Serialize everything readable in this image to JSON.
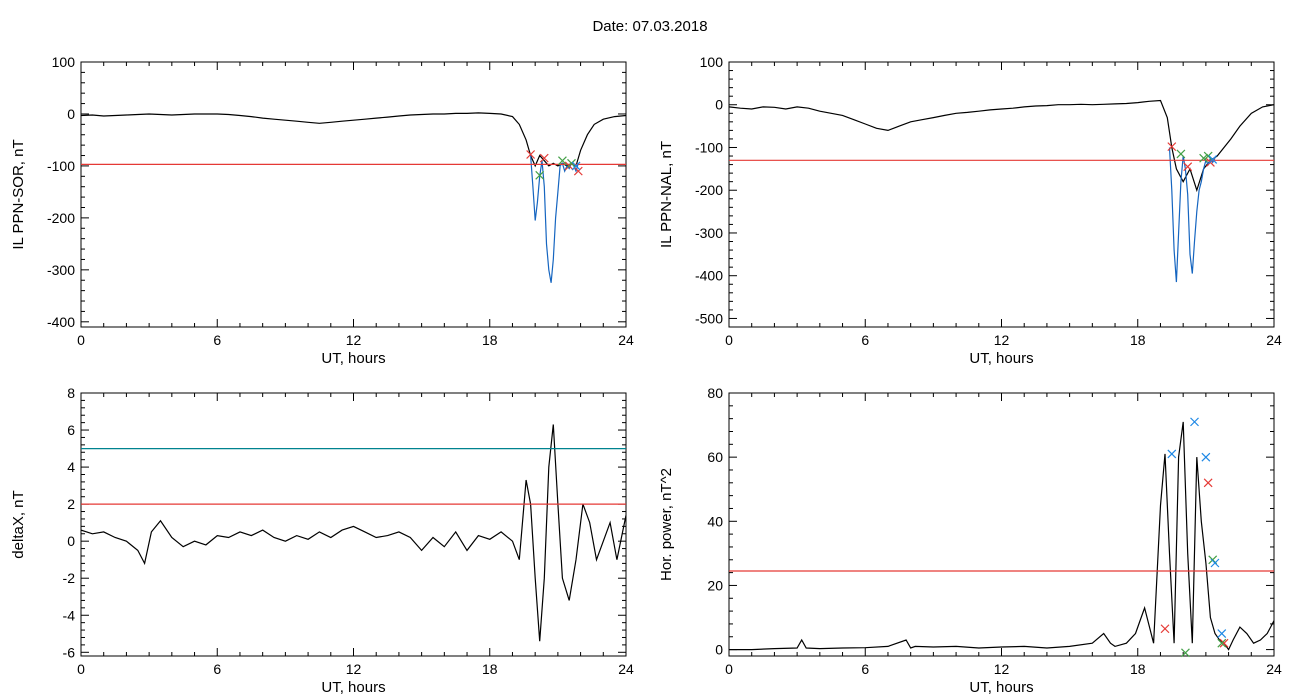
{
  "figure": {
    "title": "Date:  07.03.2018"
  },
  "chart_data": [
    {
      "type": "line",
      "xlabel": "UT, hours",
      "ylabel": "IL PPN-SOR, nT",
      "xlim": [
        0,
        24
      ],
      "ylim": [
        -410,
        100
      ],
      "xticks": [
        0,
        6,
        12,
        18,
        24
      ],
      "yticks": [
        100,
        0,
        -100,
        -200,
        -300,
        -400
      ],
      "grid": false,
      "series": [
        {
          "color": "#000000",
          "x": [
            0,
            0.5,
            1,
            1.5,
            2,
            2.5,
            3,
            3.5,
            4,
            4.5,
            5,
            5.5,
            6,
            6.5,
            7,
            7.5,
            8,
            8.5,
            9,
            9.5,
            10,
            10.5,
            11,
            11.5,
            12,
            12.5,
            13,
            13.5,
            14,
            14.5,
            15,
            15.5,
            16,
            16.5,
            17,
            17.5,
            18,
            18.5,
            19,
            19.3,
            19.6,
            19.8,
            20,
            20.2,
            20.4,
            20.6,
            20.8,
            21,
            21.2,
            21.4,
            21.6,
            21.8,
            22,
            22.3,
            22.6,
            23,
            23.5,
            24
          ],
          "y": [
            -3,
            -2,
            -4,
            -3,
            -2,
            -1,
            0,
            -1,
            -2,
            -1,
            0,
            0,
            0,
            -1,
            -3,
            -5,
            -8,
            -10,
            -12,
            -14,
            -16,
            -18,
            -16,
            -14,
            -12,
            -10,
            -8,
            -6,
            -4,
            -2,
            -1,
            0,
            0,
            1,
            1,
            2,
            1,
            0,
            -5,
            -20,
            -50,
            -80,
            -100,
            -80,
            -90,
            -100,
            -95,
            -100,
            -95,
            -100,
            -95,
            -100,
            -70,
            -40,
            -20,
            -10,
            -5,
            -3
          ]
        },
        {
          "color": "#1565c0",
          "x": [
            19.8,
            19.9,
            20.0,
            20.1,
            20.2,
            20.3,
            20.4,
            20.5,
            20.6,
            20.7,
            20.8,
            20.9,
            21.0,
            21.1,
            21.2,
            21.3,
            21.4,
            21.5,
            21.6,
            21.7,
            21.8,
            21.9
          ],
          "y": [
            -80,
            -140,
            -205,
            -170,
            -120,
            -90,
            -140,
            -250,
            -300,
            -325,
            -280,
            -200,
            -150,
            -100,
            -95,
            -110,
            -100,
            -105,
            -95,
            -100,
            -110,
            -95
          ]
        },
        {
          "color": "#e53935",
          "x": [
            0,
            24
          ],
          "y": [
            -97,
            -97
          ]
        }
      ],
      "markers": [
        {
          "color": "#e53935",
          "symbol": "x",
          "x": [
            19.8,
            20.4,
            21.5,
            21.9
          ],
          "y": [
            -78,
            -85,
            -100,
            -110
          ]
        },
        {
          "color": "#43a047",
          "symbol": "x",
          "x": [
            20.2,
            21.2,
            21.6
          ],
          "y": [
            -118,
            -90,
            -95
          ]
        },
        {
          "color": "#1e88e5",
          "symbol": "x",
          "x": [
            21.8
          ],
          "y": [
            -100
          ]
        }
      ]
    },
    {
      "type": "line",
      "xlabel": "UT, hours",
      "ylabel": "IL PPN-NAL, nT",
      "xlim": [
        0,
        24
      ],
      "ylim": [
        -520,
        100
      ],
      "xticks": [
        0,
        6,
        12,
        18,
        24
      ],
      "yticks": [
        100,
        0,
        -100,
        -200,
        -300,
        -400,
        -500
      ],
      "grid": false,
      "series": [
        {
          "color": "#000000",
          "x": [
            0,
            0.5,
            1,
            1.5,
            2,
            2.5,
            3,
            3.5,
            4,
            4.5,
            5,
            5.5,
            6,
            6.5,
            7,
            7.5,
            8,
            8.5,
            9,
            9.5,
            10,
            10.5,
            11,
            11.5,
            12,
            12.5,
            13,
            13.5,
            14,
            14.5,
            15,
            15.5,
            16,
            16.5,
            17,
            17.5,
            18,
            18.5,
            19,
            19.3,
            19.5,
            19.7,
            20,
            20.3,
            20.6,
            20.9,
            21.2,
            21.5,
            21.8,
            22.1,
            22.5,
            23,
            23.5,
            24
          ],
          "y": [
            -5,
            -8,
            -10,
            -5,
            -6,
            -10,
            -5,
            -8,
            -15,
            -20,
            -25,
            -35,
            -45,
            -55,
            -60,
            -50,
            -40,
            -35,
            -30,
            -25,
            -20,
            -18,
            -15,
            -12,
            -10,
            -8,
            -5,
            -3,
            -2,
            0,
            0,
            1,
            0,
            1,
            2,
            3,
            5,
            8,
            10,
            -30,
            -100,
            -150,
            -180,
            -150,
            -200,
            -150,
            -130,
            -120,
            -100,
            -80,
            -50,
            -20,
            -5,
            0
          ]
        },
        {
          "color": "#1565c0",
          "x": [
            19.4,
            19.5,
            19.6,
            19.7,
            19.8,
            19.9,
            20.0,
            20.1,
            20.2,
            20.3,
            20.4,
            20.5,
            20.6,
            20.7,
            20.8,
            20.9,
            21.0,
            21.1,
            21.2,
            21.3,
            21.4
          ],
          "y": [
            -100,
            -200,
            -340,
            -415,
            -300,
            -180,
            -120,
            -150,
            -210,
            -350,
            -395,
            -320,
            -250,
            -200,
            -180,
            -150,
            -130,
            -140,
            -125,
            -135,
            -125
          ]
        },
        {
          "color": "#e53935",
          "x": [
            0,
            24
          ],
          "y": [
            -130,
            -130
          ]
        }
      ],
      "markers": [
        {
          "color": "#e53935",
          "symbol": "x",
          "x": [
            19.5,
            20.2,
            21.2
          ],
          "y": [
            -98,
            -145,
            -135
          ]
        },
        {
          "color": "#43a047",
          "symbol": "x",
          "x": [
            19.9,
            20.9,
            21.1
          ],
          "y": [
            -115,
            -125,
            -120
          ]
        },
        {
          "color": "#1e88e5",
          "symbol": "x",
          "x": [
            21.3
          ],
          "y": [
            -128
          ]
        }
      ]
    },
    {
      "type": "line",
      "xlabel": "UT, hours",
      "ylabel": "deltaX, nT",
      "xlim": [
        0,
        24
      ],
      "ylim": [
        -6.2,
        8
      ],
      "xticks": [
        0,
        6,
        12,
        18,
        24
      ],
      "yticks": [
        8,
        6,
        4,
        2,
        0,
        -2,
        -4,
        -6
      ],
      "grid": false,
      "series": [
        {
          "color": "#000000",
          "x": [
            0,
            0.5,
            1,
            1.5,
            2,
            2.5,
            2.8,
            3.1,
            3.5,
            4,
            4.5,
            5,
            5.5,
            6,
            6.5,
            7,
            7.5,
            8,
            8.5,
            9,
            9.5,
            10,
            10.5,
            11,
            11.5,
            12,
            12.5,
            13,
            13.5,
            14,
            14.5,
            15,
            15.5,
            16,
            16.5,
            17,
            17.5,
            18,
            18.5,
            19,
            19.3,
            19.6,
            19.8,
            20.0,
            20.2,
            20.4,
            20.6,
            20.8,
            21.0,
            21.2,
            21.5,
            21.8,
            22.1,
            22.4,
            22.7,
            23,
            23.3,
            23.6,
            24
          ],
          "y": [
            0.6,
            0.4,
            0.5,
            0.2,
            0,
            -0.5,
            -1.2,
            0.5,
            1.1,
            0.2,
            -0.3,
            0,
            -0.2,
            0.3,
            0.2,
            0.5,
            0.3,
            0.6,
            0.2,
            0,
            0.3,
            0.1,
            0.5,
            0.2,
            0.6,
            0.8,
            0.5,
            0.2,
            0.3,
            0.5,
            0.2,
            -0.5,
            0.2,
            -0.3,
            0.5,
            -0.5,
            0.3,
            0.1,
            0.5,
            0,
            -1,
            3.3,
            2,
            -2,
            -5.4,
            -2,
            4,
            6.3,
            2,
            -2,
            -3.2,
            -1,
            2,
            1,
            -1,
            0,
            1,
            -1,
            1.4
          ]
        },
        {
          "color": "#e53935",
          "x": [
            0,
            24
          ],
          "y": [
            2,
            2
          ]
        },
        {
          "color": "#00838f",
          "x": [
            0,
            24
          ],
          "y": [
            5,
            5
          ]
        }
      ]
    },
    {
      "type": "line",
      "xlabel": "UT, hours",
      "ylabel": "Hor. power, nT^2",
      "xlim": [
        0,
        24
      ],
      "ylim": [
        -2,
        80
      ],
      "xticks": [
        0,
        6,
        12,
        18,
        24
      ],
      "yticks": [
        80,
        60,
        40,
        20,
        0
      ],
      "grid": false,
      "series": [
        {
          "color": "#000000",
          "x": [
            0,
            1,
            2,
            3,
            3.2,
            3.4,
            4,
            5,
            6,
            7,
            7.8,
            8,
            8.2,
            9,
            10,
            11,
            12,
            13,
            14,
            15,
            16,
            16.5,
            16.8,
            17,
            17.5,
            17.9,
            18.3,
            18.7,
            19.0,
            19.2,
            19.4,
            19.6,
            19.8,
            20.0,
            20.2,
            20.4,
            20.6,
            20.8,
            21.0,
            21.2,
            21.4,
            21.6,
            21.8,
            22.0,
            22.2,
            22.5,
            22.8,
            23.1,
            23.4,
            23.7,
            24
          ],
          "y": [
            0,
            0,
            0.3,
            0.5,
            3,
            0.5,
            0.3,
            0.5,
            0.6,
            1,
            3,
            0.5,
            1,
            0.8,
            1,
            0.5,
            0.8,
            1,
            0.5,
            1,
            2,
            5,
            2,
            1,
            2,
            5,
            13,
            2,
            45,
            61,
            30,
            2,
            60,
            71,
            30,
            2,
            60,
            40,
            27,
            10,
            5,
            3,
            2,
            0,
            3,
            7,
            5,
            2,
            3,
            5,
            9
          ]
        },
        {
          "color": "#e53935",
          "x": [
            0,
            24
          ],
          "y": [
            24.5,
            24.5
          ]
        }
      ],
      "markers": [
        {
          "color": "#e53935",
          "symbol": "x",
          "x": [
            19.2,
            21.1,
            21.8
          ],
          "y": [
            6.5,
            52,
            2
          ]
        },
        {
          "color": "#43a047",
          "symbol": "x",
          "x": [
            20.1,
            21.3,
            21.7
          ],
          "y": [
            -1,
            28,
            2
          ]
        },
        {
          "color": "#1e88e5",
          "symbol": "x",
          "x": [
            19.5,
            20.5,
            21.0,
            21.4,
            21.7
          ],
          "y": [
            61,
            71,
            60,
            27,
            5
          ]
        }
      ]
    }
  ]
}
